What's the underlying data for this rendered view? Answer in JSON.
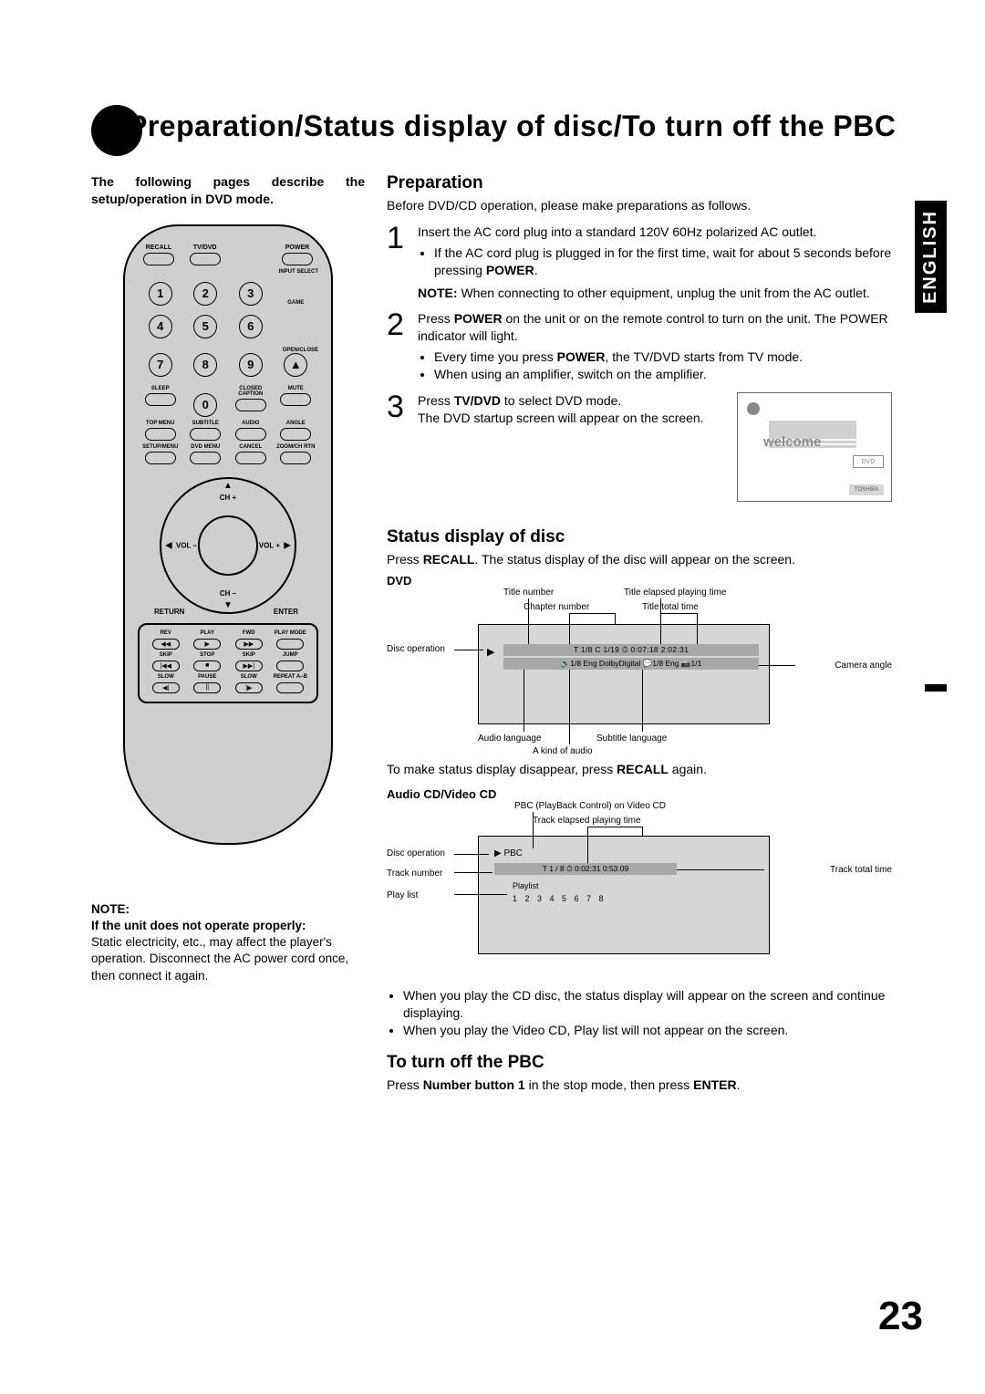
{
  "page_number": "23",
  "language_tab": "ENGLISH",
  "title": "Preparation/Status display of disc/To turn off the PBC",
  "intro": "The following pages describe the setup/operation in DVD mode.",
  "remote": {
    "top_row": [
      "RECALL",
      "TV/DVD",
      "",
      "POWER"
    ],
    "input_select": "INPUT SELECT",
    "numbers": [
      "1",
      "2",
      "3",
      "4",
      "5",
      "6",
      "7",
      "8",
      "9",
      "0"
    ],
    "right_labels": {
      "game": "GAME",
      "openclose": "OPEN/CLOSE",
      "eject": "▲"
    },
    "row3": [
      "SLEEP",
      "",
      "CLOSED CAPTION",
      "MUTE"
    ],
    "row4": [
      "TOP MENU",
      "SUBTITLE",
      "AUDIO",
      "ANGLE"
    ],
    "row5": [
      "SETUP/MENU",
      "DVD MENU",
      "CANCEL",
      "ZOOM/CH RTN"
    ],
    "ring": {
      "up": "CH +",
      "down": "CH –",
      "left": "VOL –",
      "right": "VOL +",
      "bl": "RETURN",
      "br": "ENTER"
    },
    "play_rows": [
      {
        "labels": [
          "REV",
          "PLAY",
          "FWD",
          "PLAY MODE"
        ],
        "icons": [
          "◀◀",
          "▶",
          "▶▶",
          ""
        ]
      },
      {
        "labels": [
          "SKIP",
          "STOP",
          "SKIP",
          "JUMP"
        ],
        "icons": [
          "|◀◀",
          "■",
          "▶▶|",
          ""
        ]
      },
      {
        "labels": [
          "SLOW",
          "PAUSE",
          "SLOW",
          "REPEAT A–B"
        ],
        "icons": [
          "◀|",
          "||",
          "|▶",
          ""
        ]
      }
    ]
  },
  "note_left": {
    "hd1": "NOTE:",
    "hd2": "If the unit does not operate properly:",
    "body": "Static electricity, etc., may affect the player's operation. Disconnect the AC power cord once, then connect it again."
  },
  "preparation": {
    "heading": "Preparation",
    "lead": "Before DVD/CD operation, please make preparations as follows.",
    "step1": {
      "text": "Insert the AC cord plug into a standard 120V 60Hz polarized AC outlet.",
      "bullet": "If the AC cord plug is plugged in for the first time, wait for about 5 seconds before pressing ",
      "bullet_b": "POWER",
      "bullet_end": ".",
      "note_pre": "NOTE:",
      "note": " When connecting to other equipment, unplug the unit from the AC outlet."
    },
    "step2": {
      "pre": "Press ",
      "b1": "POWER",
      "mid": " on the unit or on the remote control to turn on the unit. The POWER indicator will light.",
      "bullets": [
        {
          "pre": "Every time you press ",
          "b": "POWER",
          "post": ", the TV/DVD starts from TV mode."
        },
        {
          "pre": "When using an amplifier, switch on the amplifier.",
          "b": "",
          "post": ""
        }
      ]
    },
    "step3": {
      "pre": "Press ",
      "b": "TV/DVD",
      "mid": " to select DVD mode.",
      "line2": "The DVD startup screen will appear on the screen."
    },
    "welcome": {
      "text": "welcome",
      "dvd": "DVD",
      "brand": "TOSHIBA"
    }
  },
  "status": {
    "heading": "Status display of disc",
    "lead_pre": "Press ",
    "lead_b": "RECALL",
    "lead_post": ". The status display of the disc will appear on the screen.",
    "dvd_label": "DVD",
    "dvd_diagram": {
      "title_number": "Title number",
      "chapter_number": "Chapter number",
      "title_elapsed": "Title elapsed playing time",
      "title_total": "Title total time",
      "disc_op": "Disc operation",
      "camera": "Camera angle",
      "audio_lang": "Audio language",
      "kind_audio": "A kind of audio",
      "subtitle_lang": "Subtitle language",
      "line1": "T 1/8   C 1/19   ⏱ 0:07:18  2:02:31",
      "line2": "🔊1/8 Eng DolbyDigital 💬1/8 Eng 📷1/1"
    },
    "disappear_pre": "To make status display disappear, press ",
    "disappear_b": "RECALL",
    "disappear_post": " again.",
    "cd_label": "Audio CD/Video CD",
    "cd_diagram": {
      "pbc": "PBC (PlayBack Control) on Video CD",
      "track_elapsed": "Track elapsed playing time",
      "disc_op": "Disc operation",
      "track_num": "Track number",
      "playlist": "Play list",
      "track_total": "Track total time",
      "line1": "▶ PBC",
      "line2": "T 1 / 8   ⏱ 0:02:31  0:53:09",
      "line3_lbl": "Playlist",
      "line3": "1  2  3  4  5  6  7  8"
    },
    "cd_bullets": [
      "When you play the CD disc, the status display will appear on the screen and continue displaying.",
      "When you play the Video CD, Play list will not appear on the screen."
    ]
  },
  "pbc": {
    "heading": "To turn off the PBC",
    "pre": "Press ",
    "b1": "Number button 1",
    "mid": " in the stop mode, then press ",
    "b2": "ENTER",
    "post": "."
  }
}
